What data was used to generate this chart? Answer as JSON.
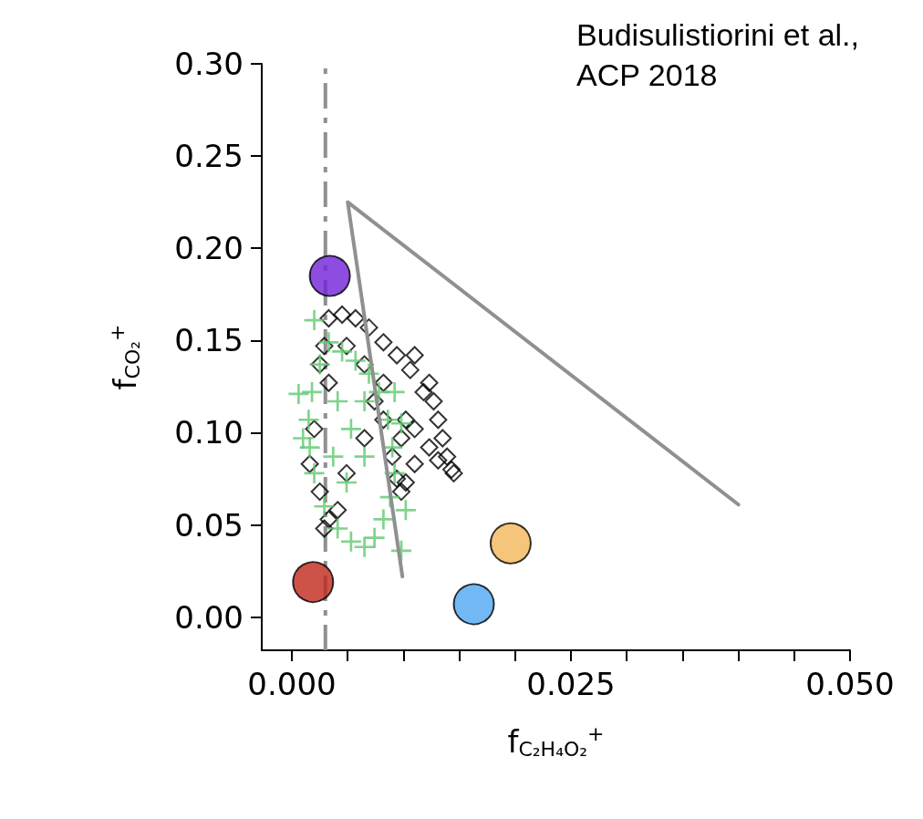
{
  "chart_data": {
    "type": "scatter",
    "xlabel": "f$_{C₂H₄O₂}$$^{+}$",
    "ylabel": "f$_{CO₂}$$^{+}$",
    "annotations": [
      "Budisulistiorini et al.,\nACP 2018"
    ],
    "xlim": [
      -0.0027,
      0.05
    ],
    "ylim": [
      -0.018,
      0.3
    ],
    "xticks": [
      {
        "value": 0,
        "label": "0.000"
      },
      {
        "value": 0.005,
        "label": null
      },
      {
        "value": 0.01,
        "label": null
      },
      {
        "value": 0.015,
        "label": null
      },
      {
        "value": 0.02,
        "label": null
      },
      {
        "value": 0.025,
        "label": "0.025"
      },
      {
        "value": 0.03,
        "label": null
      },
      {
        "value": 0.035,
        "label": null
      },
      {
        "value": 0.04,
        "label": null
      },
      {
        "value": 0.045,
        "label": null
      },
      {
        "value": 0.05,
        "label": "0.050"
      }
    ],
    "yticks": [
      {
        "value": 0,
        "label": "0.00"
      },
      {
        "value": 0.05,
        "label": "0.05"
      },
      {
        "value": 0.1,
        "label": "0.10"
      },
      {
        "value": 0.15,
        "label": "0.15"
      },
      {
        "value": 0.2,
        "label": "0.20"
      },
      {
        "value": 0.25,
        "label": "0.25"
      },
      {
        "value": 0.3,
        "label": "0.30"
      }
    ],
    "grid": false,
    "ref_lines": [
      {
        "axis": "x",
        "value": 0.003,
        "label": null,
        "color": "#909090",
        "line_style": "dashed"
      }
    ],
    "series": [
      {
        "type": "scatter",
        "marker": "diamond",
        "color": "#000000",
        "x": [
          0.0033,
          0.0045,
          0.0057,
          0.0069,
          0.0082,
          0.0094,
          0.0106,
          0.011,
          0.0118,
          0.0123,
          0.0127,
          0.0131,
          0.0135,
          0.0139,
          0.0143,
          0.0145,
          0.0131,
          0.0123,
          0.011,
          0.0102,
          0.0098,
          0.009,
          0.0094,
          0.0102,
          0.0098,
          0.0025,
          0.0029,
          0.002,
          0.0016,
          0.0025,
          0.0033,
          0.0029,
          0.0041,
          0.0049,
          0.0065,
          0.0074,
          0.0082,
          0.0065,
          0.0049,
          0.0033,
          0.0082,
          0.011
        ],
        "values": [
          0.162,
          0.164,
          0.162,
          0.157,
          0.149,
          0.142,
          0.134,
          0.142,
          0.122,
          0.127,
          0.117,
          0.107,
          0.097,
          0.087,
          0.08,
          0.078,
          0.085,
          0.092,
          0.102,
          0.107,
          0.097,
          0.087,
          0.075,
          0.073,
          0.068,
          0.137,
          0.147,
          0.102,
          0.083,
          0.068,
          0.053,
          0.048,
          0.058,
          0.078,
          0.097,
          0.117,
          0.127,
          0.137,
          0.147,
          0.127,
          0.107,
          0.083
        ]
      },
      {
        "type": "scatter",
        "marker": "cross",
        "color": "#5ec96e",
        "x": [
          0.002,
          0.0033,
          0.0045,
          0.0057,
          0.0069,
          0.0078,
          0.0086,
          0.009,
          0.0092,
          0.0088,
          0.0082,
          0.0074,
          0.0065,
          0.0053,
          0.0041,
          0.0029,
          0.002,
          0.0016,
          0.0015,
          0.0018,
          0.0025,
          0.0006,
          0.001,
          0.0098,
          0.0102,
          0.0098,
          0.0092,
          0.0053,
          0.0041,
          0.0065,
          0.0049,
          0.0065,
          0.0037
        ],
        "values": [
          0.161,
          0.149,
          0.144,
          0.139,
          0.132,
          0.122,
          0.107,
          0.092,
          0.078,
          0.065,
          0.053,
          0.043,
          0.038,
          0.041,
          0.048,
          0.06,
          0.078,
          0.092,
          0.107,
          0.122,
          0.137,
          0.121,
          0.097,
          0.036,
          0.058,
          0.105,
          0.122,
          0.102,
          0.117,
          0.087,
          0.073,
          0.117,
          0.087
        ]
      },
      {
        "type": "scatter",
        "marker": "circle",
        "colors": [
          "#7020d8",
          "#c0281c",
          "#f2b75a",
          "#4ea6f2"
        ],
        "x": [
          0.0034,
          0.0019,
          0.0196,
          0.0163
        ],
        "values": [
          0.185,
          0.019,
          0.04,
          0.007
        ]
      },
      {
        "type": "line",
        "marker": "none",
        "line_style": "solid",
        "color": "#909090",
        "x": [
          0.0099,
          0.005,
          0.04
        ],
        "values": [
          0.022,
          0.225,
          0.061
        ]
      }
    ]
  }
}
